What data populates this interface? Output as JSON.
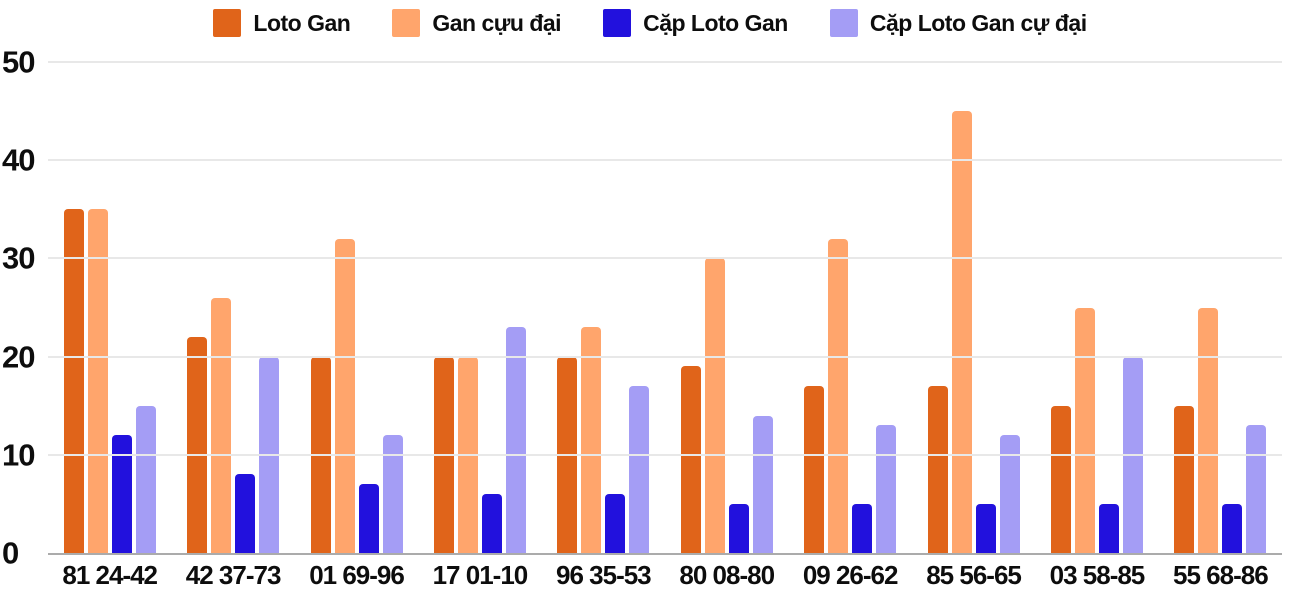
{
  "chart_data": {
    "type": "bar",
    "title": "",
    "xlabel": "",
    "ylabel": "",
    "categories": [
      "81 24-42",
      "42 37-73",
      "01 69-96",
      "17 01-10",
      "96 35-53",
      "80 08-80",
      "09 26-62",
      "85 56-65",
      "03 58-85",
      "55 68-86"
    ],
    "series": [
      {
        "name": "Loto Gan",
        "color": "#e0641a",
        "values": [
          35,
          22,
          20,
          20,
          20,
          19,
          17,
          17,
          15,
          15
        ]
      },
      {
        "name": "Gan cựu đại",
        "color": "#ffa56c",
        "values": [
          35,
          26,
          32,
          20,
          23,
          30,
          32,
          45,
          25,
          25
        ]
      },
      {
        "name": "Cặp Loto Gan",
        "color": "#2211dd",
        "values": [
          12,
          8,
          7,
          6,
          6,
          5,
          5,
          5,
          5,
          5
        ]
      },
      {
        "name": "Cặp Loto Gan cự đại",
        "color": "#a49df5",
        "values": [
          15,
          20,
          12,
          23,
          17,
          14,
          13,
          12,
          20,
          13
        ]
      }
    ],
    "ylim": [
      0,
      50
    ],
    "yticks": [
      0,
      10,
      20,
      30,
      40,
      50
    ],
    "grid": true,
    "legend_position": "top",
    "colors": {
      "gridline": "#e8e8e8",
      "axis_line": "#ababab",
      "text": "#0d0d0d",
      "background": "#ffffff"
    }
  }
}
